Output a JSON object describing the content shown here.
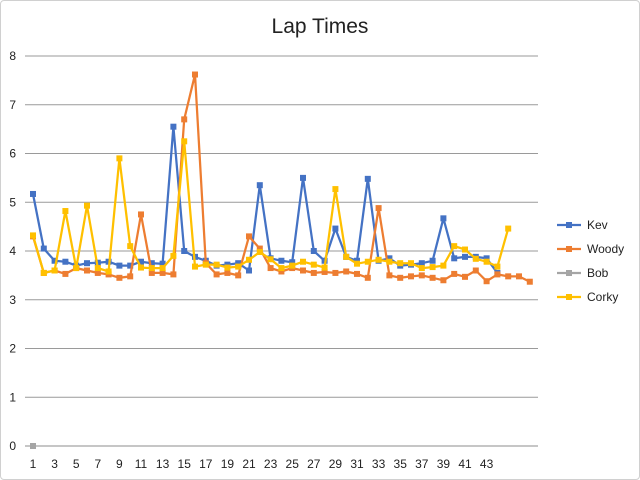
{
  "chart_data": {
    "type": "line",
    "title": "Lap Times",
    "xlabel": "",
    "ylabel": "",
    "ylim": [
      0,
      8
    ],
    "yticks": [
      "0",
      "1",
      "2",
      "3",
      "4",
      "5",
      "6",
      "7",
      "8"
    ],
    "xticks": [
      "1",
      "3",
      "5",
      "7",
      "9",
      "11",
      "13",
      "15",
      "17",
      "19",
      "21",
      "23",
      "25",
      "27",
      "29",
      "31",
      "33",
      "35",
      "37",
      "39",
      "41",
      "43"
    ],
    "grid": "horizontal",
    "legend": "right",
    "series": [
      {
        "name": "Kev",
        "color": "#4472C4",
        "marker": "square",
        "values": [
          5.17,
          4.05,
          3.8,
          3.78,
          3.7,
          3.75,
          3.76,
          3.78,
          3.7,
          3.7,
          3.78,
          3.75,
          3.74,
          6.55,
          4.0,
          3.88,
          3.8,
          3.7,
          3.72,
          3.75,
          3.6,
          5.35,
          3.85,
          3.8,
          3.77,
          5.5,
          4.0,
          3.8,
          4.46,
          3.88,
          3.8,
          5.48,
          3.8,
          3.85,
          3.7,
          3.72,
          3.75,
          3.8,
          4.67,
          3.85,
          3.88,
          3.88,
          3.85,
          3.55
        ]
      },
      {
        "name": "Woody",
        "color": "#ED7D31",
        "marker": "square",
        "values": [
          4.3,
          3.55,
          3.6,
          3.53,
          3.65,
          3.6,
          3.55,
          3.52,
          3.45,
          3.48,
          4.75,
          3.55,
          3.55,
          3.52,
          6.7,
          7.62,
          3.75,
          3.52,
          3.55,
          3.5,
          4.3,
          4.05,
          3.65,
          3.58,
          3.65,
          3.6,
          3.55,
          3.57,
          3.55,
          3.58,
          3.53,
          3.45,
          4.88,
          3.5,
          3.45,
          3.48,
          3.5,
          3.45,
          3.4,
          3.53,
          3.47,
          3.6,
          3.38,
          3.52,
          3.48,
          3.48,
          3.37
        ]
      },
      {
        "name": "Bob",
        "color": "#A5A5A5",
        "marker": "square",
        "values": [
          0
        ]
      },
      {
        "name": "Corky",
        "color": "#FFC000",
        "marker": "square",
        "values": [
          4.32,
          3.55,
          3.6,
          4.82,
          3.65,
          4.93,
          3.65,
          3.58,
          5.9,
          4.1,
          3.66,
          3.65,
          3.65,
          3.9,
          6.25,
          3.68,
          3.72,
          3.72,
          3.66,
          3.68,
          3.82,
          3.98,
          3.83,
          3.65,
          3.7,
          3.78,
          3.72,
          3.66,
          5.27,
          3.88,
          3.74,
          3.78,
          3.82,
          3.78,
          3.75,
          3.75,
          3.65,
          3.67,
          3.7,
          4.1,
          4.03,
          3.84,
          3.78,
          3.68,
          4.46
        ]
      }
    ]
  }
}
